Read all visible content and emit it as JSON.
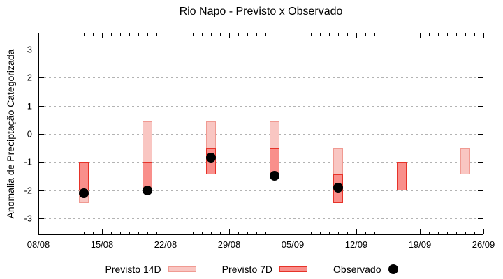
{
  "chart_data": {
    "type": "range-bar",
    "title": "Rio Napo - Previsto x Observado",
    "ylabel": "Anomalia de Preciptação Categorizada",
    "xlabel": "",
    "x_tick_labels": [
      "08/08",
      "15/08",
      "22/08",
      "29/08",
      "05/09",
      "12/09",
      "19/09",
      "26/09"
    ],
    "x_span_days": 49,
    "x_major_tick_every_days": 7,
    "x_minor_tick_every_days": 1,
    "y_ticks": [
      3,
      2,
      1,
      0,
      -1,
      -2,
      -3
    ],
    "ylim": [
      -3.6,
      3.6
    ],
    "grid": "horizontal-dashed",
    "legend": [
      {
        "label": "Previsto 14D",
        "swatch": "light-box"
      },
      {
        "label": "Previsto 7D",
        "swatch": "dark-box"
      },
      {
        "label": "Observado",
        "swatch": "black-dot"
      }
    ],
    "colors": {
      "previsto14_fill": "#f9c6c2",
      "previsto14_border": "#f09a92",
      "previsto7_fill": "#f98f8b",
      "previsto7_border": "#e63329",
      "observado": "#000000",
      "grid": "#b3b3b3",
      "axis": "#000000"
    },
    "bars": [
      {
        "date": "13/08",
        "day": 5,
        "previsto14": [
          -2.45,
          -1.0
        ],
        "previsto7": [
          -2.0,
          -1.0
        ],
        "observado": -2.1
      },
      {
        "date": "20/08",
        "day": 12,
        "previsto14": [
          -2.0,
          0.45
        ],
        "previsto7": [
          -2.0,
          -1.0
        ],
        "observado": -2.0
      },
      {
        "date": "27/08",
        "day": 19,
        "previsto14": [
          -1.45,
          0.45
        ],
        "previsto7": [
          -1.45,
          -0.5
        ],
        "observado": -0.85
      },
      {
        "date": "03/09",
        "day": 26,
        "previsto14": [
          -1.45,
          0.45
        ],
        "previsto7": [
          -1.45,
          -0.5
        ],
        "observado": -1.5
      },
      {
        "date": "10/09",
        "day": 33,
        "previsto14": [
          -2.45,
          -0.5
        ],
        "previsto7": [
          -2.45,
          -1.45
        ],
        "observado": -1.9
      },
      {
        "date": "17/09",
        "day": 40,
        "previsto14": null,
        "previsto7": [
          -2.0,
          -1.0
        ],
        "observado": null
      },
      {
        "date": "24/09",
        "day": 47,
        "previsto14": [
          -1.45,
          -0.5
        ],
        "previsto7": null,
        "observado": null
      }
    ]
  }
}
